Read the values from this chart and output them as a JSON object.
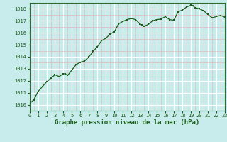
{
  "x": [
    0,
    0.5,
    1,
    1.5,
    2,
    2.5,
    3,
    3.5,
    4,
    4.25,
    4.5,
    5,
    5.5,
    6,
    6.5,
    7,
    7.5,
    8,
    8.5,
    9,
    9.5,
    10,
    10.5,
    11,
    11.5,
    12,
    12.5,
    13,
    13.25,
    13.5,
    14,
    14.5,
    15,
    15.5,
    16,
    16.5,
    17,
    17.5,
    18,
    18.5,
    19,
    19.25,
    19.5,
    20,
    20.5,
    21,
    21.5,
    22,
    22.5,
    23
  ],
  "y": [
    1010.1,
    1010.4,
    1011.1,
    1011.5,
    1011.9,
    1012.2,
    1012.5,
    1012.35,
    1012.6,
    1012.55,
    1012.45,
    1012.9,
    1013.35,
    1013.55,
    1013.65,
    1014.0,
    1014.45,
    1014.85,
    1015.35,
    1015.55,
    1015.9,
    1016.1,
    1016.75,
    1016.95,
    1017.1,
    1017.2,
    1017.1,
    1016.75,
    1016.65,
    1016.55,
    1016.7,
    1017.0,
    1017.1,
    1017.15,
    1017.35,
    1017.1,
    1017.05,
    1017.75,
    1017.9,
    1018.15,
    1018.3,
    1018.25,
    1018.1,
    1018.0,
    1017.85,
    1017.55,
    1017.25,
    1017.35,
    1017.45,
    1017.3
  ],
  "xlim": [
    0,
    23
  ],
  "ylim": [
    1009.5,
    1018.5
  ],
  "yticks": [
    1010,
    1011,
    1012,
    1013,
    1014,
    1015,
    1016,
    1017,
    1018
  ],
  "xticks": [
    0,
    1,
    2,
    3,
    4,
    5,
    6,
    7,
    8,
    9,
    10,
    11,
    12,
    13,
    14,
    15,
    16,
    17,
    18,
    19,
    20,
    21,
    22,
    23
  ],
  "xtick_labels": [
    "0",
    "1",
    "2",
    "3",
    "4",
    "5",
    "6",
    "7",
    "8",
    "9",
    "10",
    "11",
    "12",
    "13",
    "14",
    "15",
    "16",
    "17",
    "18",
    "19",
    "20",
    "21",
    "22",
    "23"
  ],
  "line_color": "#1a5c1a",
  "marker_color": "#1a5c1a",
  "bg_color": "#c8ecec",
  "grid_major_color": "#ffffff",
  "grid_minor_color": "#ddbcbc",
  "xlabel": "Graphe pression niveau de la mer (hPa)",
  "xlabel_color": "#1a5c1a",
  "tick_color": "#1a5c1a",
  "spine_color": "#2d6e2d"
}
